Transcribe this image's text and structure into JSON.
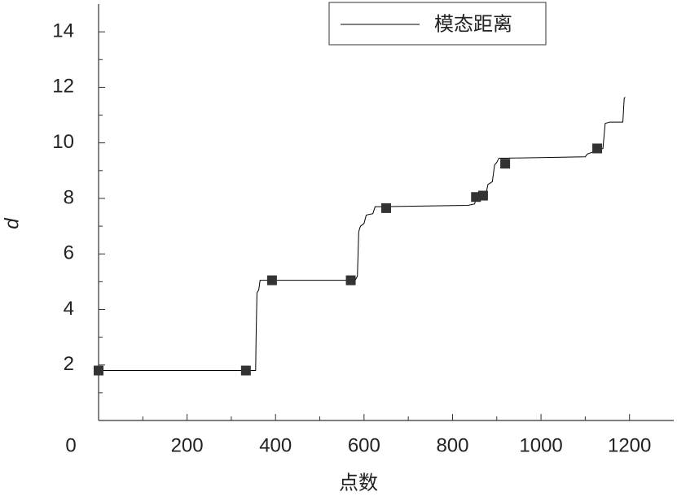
{
  "chart_data": {
    "type": "line",
    "xlabel": "点数",
    "ylabel": "d",
    "xlim": [
      0,
      1300
    ],
    "ylim": [
      0,
      15
    ],
    "xticks": [
      0,
      200,
      400,
      600,
      800,
      1000,
      1200
    ],
    "yticks": [
      2,
      4,
      6,
      8,
      10,
      12,
      14
    ],
    "series": [
      {
        "name": "模态距离",
        "color": "#000000",
        "x": [
          0,
          355,
          356,
          358,
          362,
          365,
          580,
          585,
          588,
          592,
          600,
          605,
          620,
          625,
          640,
          835,
          850,
          855,
          875,
          880,
          890,
          895,
          900,
          905,
          920,
          1100,
          1105,
          1140,
          1145,
          1155,
          1185,
          1188,
          1190
        ],
        "values": [
          1.8,
          1.8,
          3.0,
          4.6,
          4.7,
          5.05,
          5.05,
          5.2,
          6.8,
          7.0,
          7.1,
          7.4,
          7.45,
          7.7,
          7.7,
          7.75,
          7.8,
          8.1,
          8.1,
          8.5,
          8.6,
          9.2,
          9.3,
          9.45,
          9.45,
          9.5,
          9.6,
          9.8,
          10.7,
          10.75,
          10.75,
          11.6,
          11.65
        ]
      }
    ],
    "markers": {
      "color": "#333333",
      "x": [
        0,
        333,
        392,
        570,
        650,
        853,
        869,
        919,
        1127
      ],
      "values": [
        1.8,
        1.8,
        5.05,
        5.05,
        7.65,
        8.05,
        8.1,
        9.25,
        9.8
      ]
    },
    "legend": "top"
  }
}
